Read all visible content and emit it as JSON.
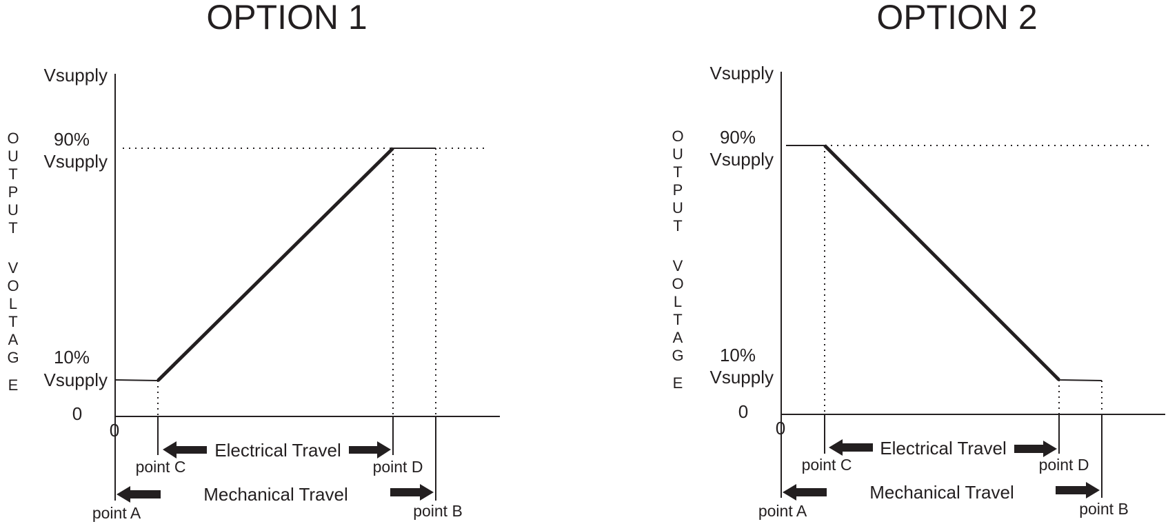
{
  "colors": {
    "ink": "#231f20",
    "background": "#ffffff"
  },
  "charts": [
    {
      "title": "OPTION 1",
      "y_axis_letters": [
        "O",
        "U",
        "T",
        "P",
        "U",
        "T",
        "",
        "V",
        "O",
        "L",
        "T",
        "A",
        "G",
        "E"
      ],
      "y_ticks": {
        "vsupply": "Vsupply",
        "p90_line1": "90%",
        "p90_line2": "Vsupply",
        "p10_line1": "10%",
        "p10_line2": "Vsupply",
        "zero": "0"
      },
      "x_origin": "0",
      "points": {
        "a": "point A",
        "b": "point B",
        "c": "point C",
        "d": "point D"
      },
      "electrical_travel": "Electrical Travel",
      "mechanical_travel": "Mechanical Travel",
      "slope": "rising"
    },
    {
      "title": "OPTION 2",
      "y_axis_letters": [
        "O",
        "U",
        "T",
        "P",
        "U",
        "T",
        "",
        "V",
        "O",
        "L",
        "T",
        "A",
        "G",
        "E"
      ],
      "y_ticks": {
        "vsupply": "Vsupply",
        "p90_line1": "90%",
        "p90_line2": "Vsupply",
        "p10_line1": "10%",
        "p10_line2": "Vsupply",
        "zero": "0"
      },
      "x_origin": "0",
      "points": {
        "a": "point A",
        "b": "point B",
        "c": "point C",
        "d": "point D"
      },
      "electrical_travel": "Electrical Travel",
      "mechanical_travel": "Mechanical Travel",
      "slope": "falling"
    }
  ]
}
